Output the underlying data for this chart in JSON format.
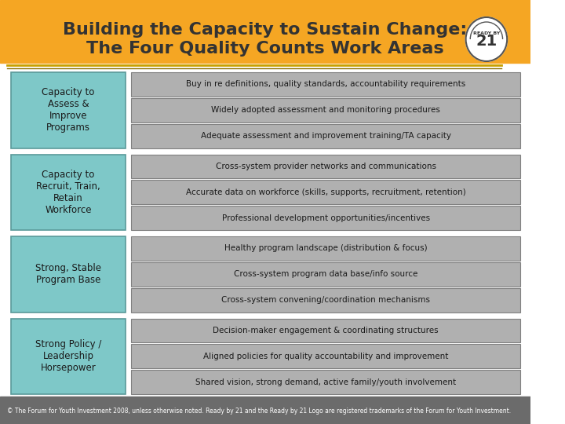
{
  "title_line1": "Building the Capacity to Sustain Change:",
  "title_line2": "The Four Quality Counts Work Areas",
  "header_color": "#F5A623",
  "bg_color": "#FFFFFF",
  "left_box_color": "#7EC8C8",
  "right_box_color": "#B0B0B0",
  "left_box_border": "#5A9A9A",
  "right_box_border": "#808080",
  "footer_bg": "#6B6B6B",
  "footer_text": "© The Forum for Youth Investment 2008, unless otherwise noted. Ready by 21 and the Ready by 21 Logo are registered trademarks of the Forum for Youth Investment.",
  "rows": [
    {
      "left": "Capacity to\nAssess &\nImprove\nPrograms",
      "right": [
        "Buy in re definitions, quality standards, accountability requirements",
        "Widely adopted assessment and monitoring procedures",
        "Adequate assessment and improvement training/TA capacity"
      ]
    },
    {
      "left": "Capacity to\nRecruit, Train,\nRetain\nWorkforce",
      "right": [
        "Cross-system provider networks and communications",
        "Accurate data on workforce (skills, supports, recruitment, retention)",
        "Professional development opportunities/incentives"
      ]
    },
    {
      "left": "Strong, Stable\nProgram Base",
      "right": [
        "Healthy program landscape (distribution & focus)",
        "Cross-system program data base/info source",
        "Cross-system convening/coordination mechanisms"
      ]
    },
    {
      "left": "Strong Policy /\nLeadership\nHorsepower",
      "right": [
        "Decision-maker engagement & coordinating structures",
        "Aligned policies for quality accountability and improvement",
        "Shared vision, strong demand, active family/youth involvement"
      ]
    }
  ]
}
